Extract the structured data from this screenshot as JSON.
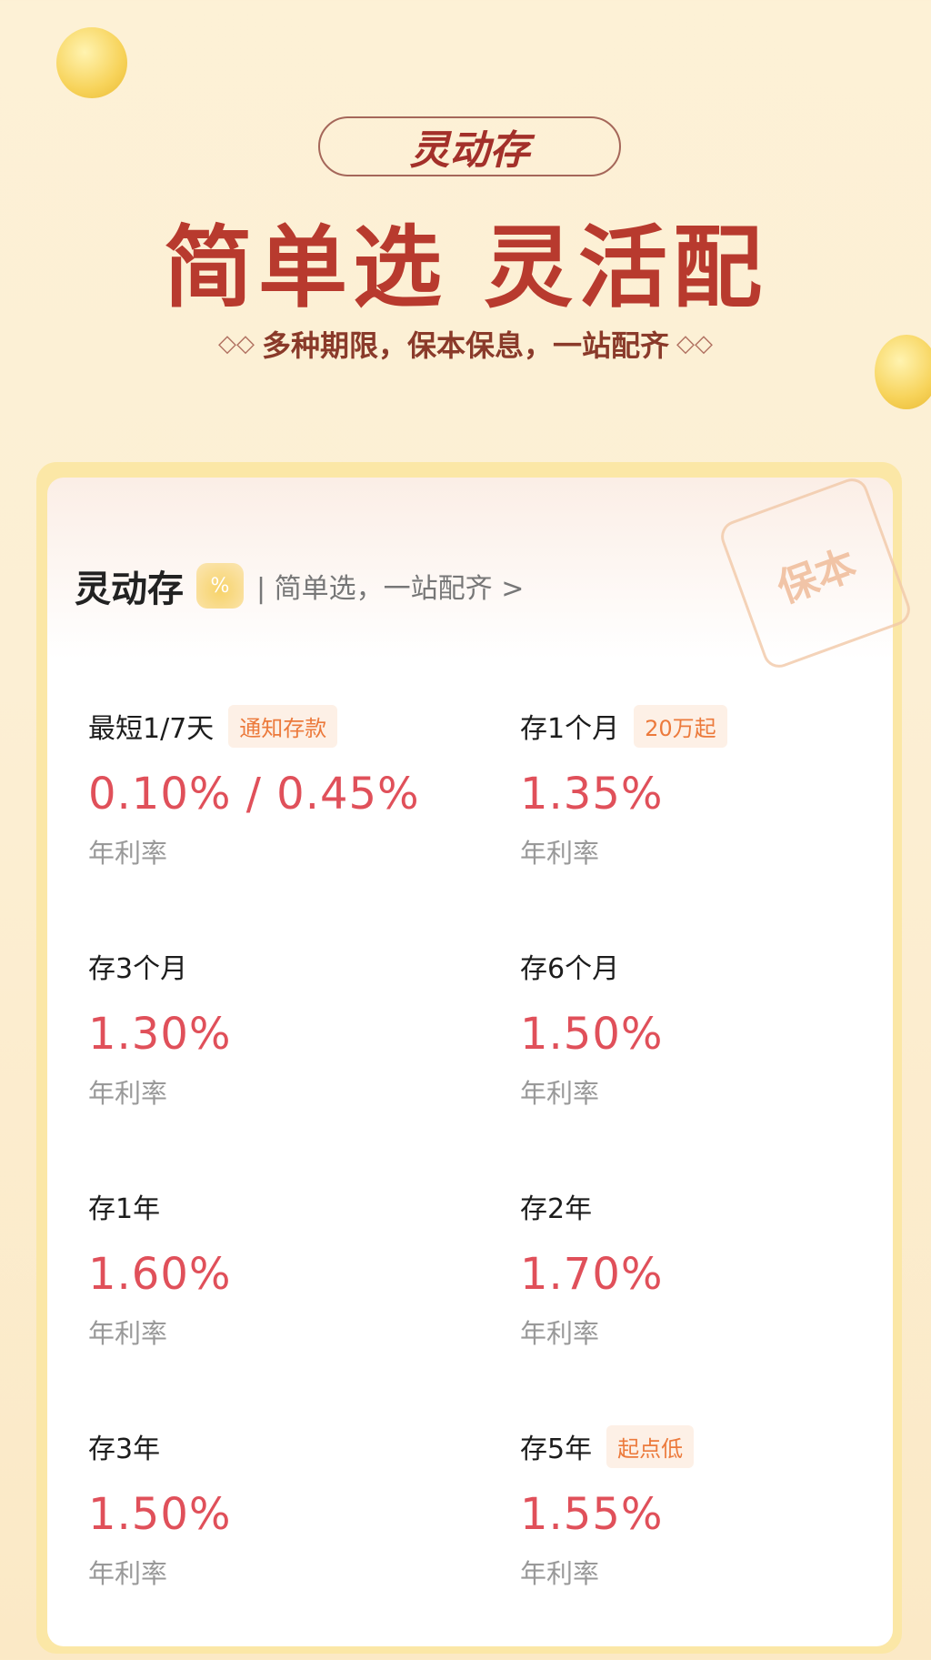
{
  "banner": {
    "pill_logo": "灵动存",
    "headline": "简单选 灵活配",
    "subtitle": "多种期限，保本保息，一站配齐"
  },
  "card": {
    "title": "灵动存",
    "subtitle": "简单选，一站配齐 >",
    "stamp": "保本",
    "products": [
      {
        "term": "最短1/7天",
        "tag": "通知存款",
        "rate": "0.10% / 0.45%",
        "unit": "年利率"
      },
      {
        "term": "存1个月",
        "tag": "20万起",
        "rate": "1.35%",
        "unit": "年利率"
      },
      {
        "term": "存3个月",
        "rate": "1.30%",
        "unit": "年利率"
      },
      {
        "term": "存6个月",
        "rate": "1.50%",
        "unit": "年利率"
      },
      {
        "term": "存1年",
        "rate": "1.60%",
        "unit": "年利率"
      },
      {
        "term": "存2年",
        "rate": "1.70%",
        "unit": "年利率"
      },
      {
        "term": "存3年",
        "rate": "1.50%",
        "unit": "年利率"
      },
      {
        "term": "存5年",
        "tag": "起点低",
        "rate": "1.55%",
        "unit": "年利率"
      }
    ]
  },
  "colors": {
    "rate": "#e0505a",
    "tag_text": "#ec7a3c",
    "headline": "#b83a2e"
  }
}
